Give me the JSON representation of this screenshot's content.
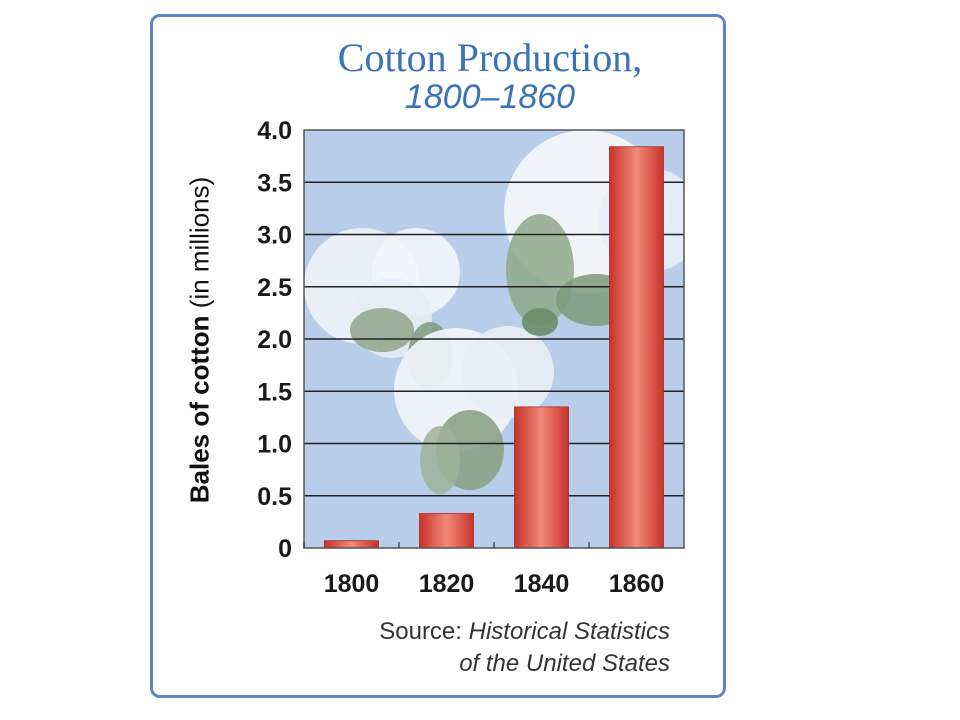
{
  "chart_data": {
    "type": "bar",
    "title": "Cotton Production,",
    "subtitle": "1800–1860",
    "categories": [
      "1800",
      "1820",
      "1840",
      "1860"
    ],
    "values": [
      0.07,
      0.33,
      1.35,
      3.84
    ],
    "ylabel": "Bales of cotton",
    "ylabel_unit": "(in millions)",
    "yticks": [
      "0",
      "0.5",
      "1.0",
      "1.5",
      "2.0",
      "2.5",
      "3.0",
      "3.5",
      "4.0"
    ],
    "ylim": [
      0,
      4.0
    ],
    "grid": true,
    "bar_color": "#d8443a",
    "background_color": "#b7cde9"
  },
  "source": {
    "prefix": "Source:",
    "title_line1": "Historical Statistics",
    "title_line2": "of the United States"
  },
  "colors": {
    "frame": "#5b86c5",
    "title": "#3a73b8"
  }
}
